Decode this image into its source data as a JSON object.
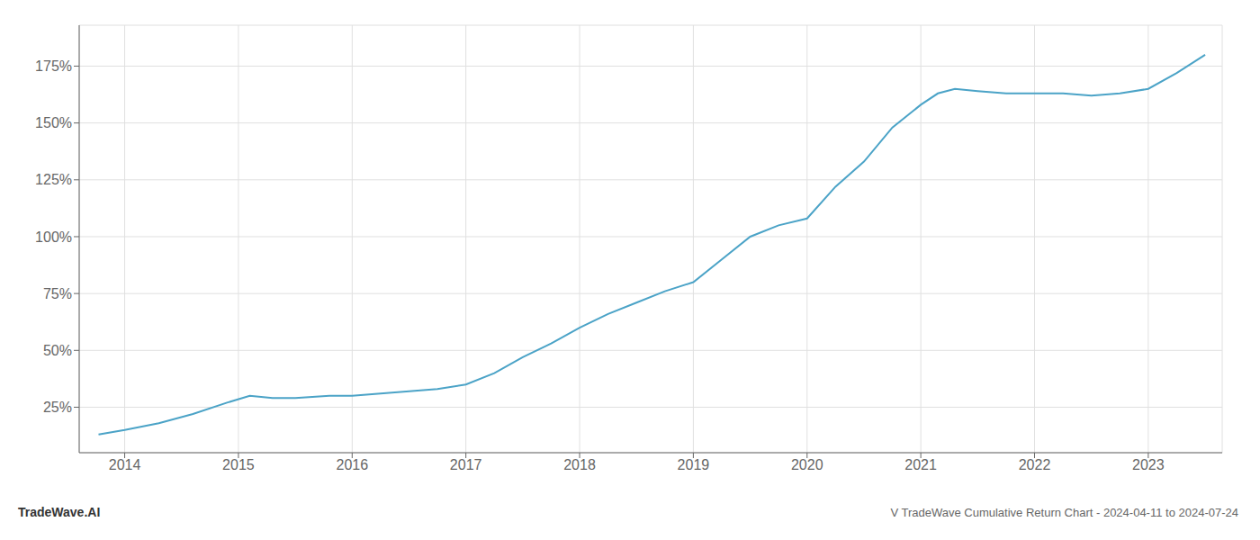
{
  "chart_data": {
    "type": "line",
    "title": "V TradeWave Cumulative Return Chart - 2024-04-11 to 2024-07-24",
    "annotations": [
      "TradeWave.AI"
    ],
    "x": [
      2013.77,
      2014.0,
      2014.3,
      2014.6,
      2014.9,
      2015.1,
      2015.3,
      2015.5,
      2015.8,
      2016.0,
      2016.25,
      2016.5,
      2016.75,
      2017.0,
      2017.25,
      2017.5,
      2017.75,
      2018.0,
      2018.25,
      2018.5,
      2018.75,
      2019.0,
      2019.25,
      2019.5,
      2019.75,
      2020.0,
      2020.25,
      2020.5,
      2020.75,
      2021.0,
      2021.15,
      2021.3,
      2021.5,
      2021.75,
      2022.0,
      2022.25,
      2022.5,
      2022.75,
      2023.0,
      2023.25,
      2023.5
    ],
    "values": [
      13,
      15,
      18,
      22,
      27,
      30,
      29,
      29,
      30,
      30,
      31,
      32,
      33,
      35,
      40,
      47,
      53,
      60,
      66,
      71,
      76,
      80,
      90,
      100,
      105,
      108,
      122,
      133,
      148,
      158,
      163,
      165,
      164,
      163,
      163,
      163,
      162,
      163,
      165,
      172,
      180
    ],
    "color": "#4ba3c7",
    "xlim": [
      2013.6,
      2023.65
    ],
    "ylim": [
      5,
      193
    ],
    "xticks": [
      2014,
      2015,
      2016,
      2017,
      2018,
      2019,
      2020,
      2021,
      2022,
      2023
    ],
    "yticks": [
      {
        "value": 25,
        "label": "25%"
      },
      {
        "value": 50,
        "label": "50%"
      },
      {
        "value": 75,
        "label": "75%"
      },
      {
        "value": 100,
        "label": "100%"
      },
      {
        "value": 125,
        "label": "125%"
      },
      {
        "value": 150,
        "label": "150%"
      },
      {
        "value": 175,
        "label": "175%"
      }
    ],
    "grid": true
  }
}
